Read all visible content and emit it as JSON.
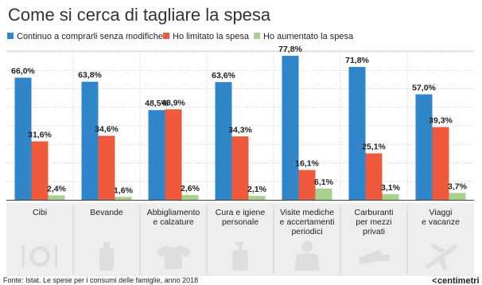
{
  "title": "Come si cerca di tagliare la spesa",
  "source": "Fonte: Istat. Le spese per i consumi delle famiglie, anno 2018",
  "brand": "centimetri",
  "colors": {
    "series": [
      "#2f86c8",
      "#f05a3c",
      "#a9d18e"
    ],
    "grid": "#c8c8c8",
    "panel": "#eeeeee",
    "icon": "#dedede"
  },
  "chart_data": {
    "type": "bar",
    "title": "Come si cerca di tagliare la spesa",
    "xlabel": "",
    "ylabel": "",
    "ylim": [
      0,
      80
    ],
    "grid": true,
    "legend": "top",
    "categories": [
      "Cibi",
      "Bevande",
      "Abbigliamento\ne calzature",
      "Cura e igiene\npersonale",
      "Visite mediche\ne accertamenti\nperiodici",
      "Carburanti\nper mezzi\nprivati",
      "Viaggi\ne vacanze"
    ],
    "category_icons": [
      "dish-icon",
      "bottle-icon",
      "shirt-icon",
      "soap-dispenser-icon",
      "doctor-icon",
      "fuel-nozzle-icon",
      "airplane-icon"
    ],
    "series": [
      {
        "name": "Continuo a comprarli senza modifiche",
        "values": [
          66.0,
          63.8,
          48.5,
          63.6,
          77.8,
          71.8,
          57.0
        ],
        "labels": [
          "66,0%",
          "63,8%",
          "48,5%",
          "63,6%",
          "77,8%",
          "71,8%",
          "57,0%"
        ]
      },
      {
        "name": "Ho limitato la spesa",
        "values": [
          31.6,
          34.6,
          48.9,
          34.3,
          16.1,
          25.1,
          39.3
        ],
        "labels": [
          "31,6%",
          "34,6%",
          "48,9%",
          "34,3%",
          "16,1%",
          "25,1%",
          "39,3%"
        ]
      },
      {
        "name": "Ho aumentato la spesa",
        "values": [
          2.4,
          1.6,
          2.6,
          2.1,
          6.1,
          3.1,
          3.7
        ],
        "labels": [
          "2,4%",
          "1,6%",
          "2,6%",
          "2,1%",
          "6,1%",
          "3,1%",
          "3,7%"
        ]
      }
    ]
  }
}
